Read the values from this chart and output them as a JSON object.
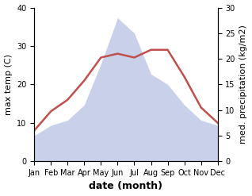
{
  "months": [
    "Jan",
    "Feb",
    "Mar",
    "Apr",
    "May",
    "Jun",
    "Jul",
    "Aug",
    "Sep",
    "Oct",
    "Nov",
    "Dec"
  ],
  "max_temp": [
    8,
    13,
    16,
    21,
    27,
    28,
    27,
    29,
    29,
    22,
    14,
    10
  ],
  "precipitation": [
    5,
    7,
    8,
    11,
    19,
    28,
    25,
    17,
    15,
    11,
    8,
    7
  ],
  "temp_color": "#c0504d",
  "precip_color_fill": "#c8d0ea",
  "temp_ylim": [
    0,
    40
  ],
  "temp_yticks": [
    0,
    10,
    20,
    30,
    40
  ],
  "precip_ylim": [
    0,
    30
  ],
  "precip_yticks": [
    0,
    5,
    10,
    15,
    20,
    25,
    30
  ],
  "xlabel": "date (month)",
  "ylabel_left": "max temp (C)",
  "ylabel_right": "med. precipitation (kg/m2)",
  "bg_color": "#ffffff",
  "label_fontsize": 8,
  "tick_fontsize": 7,
  "xlabel_fontsize": 9
}
